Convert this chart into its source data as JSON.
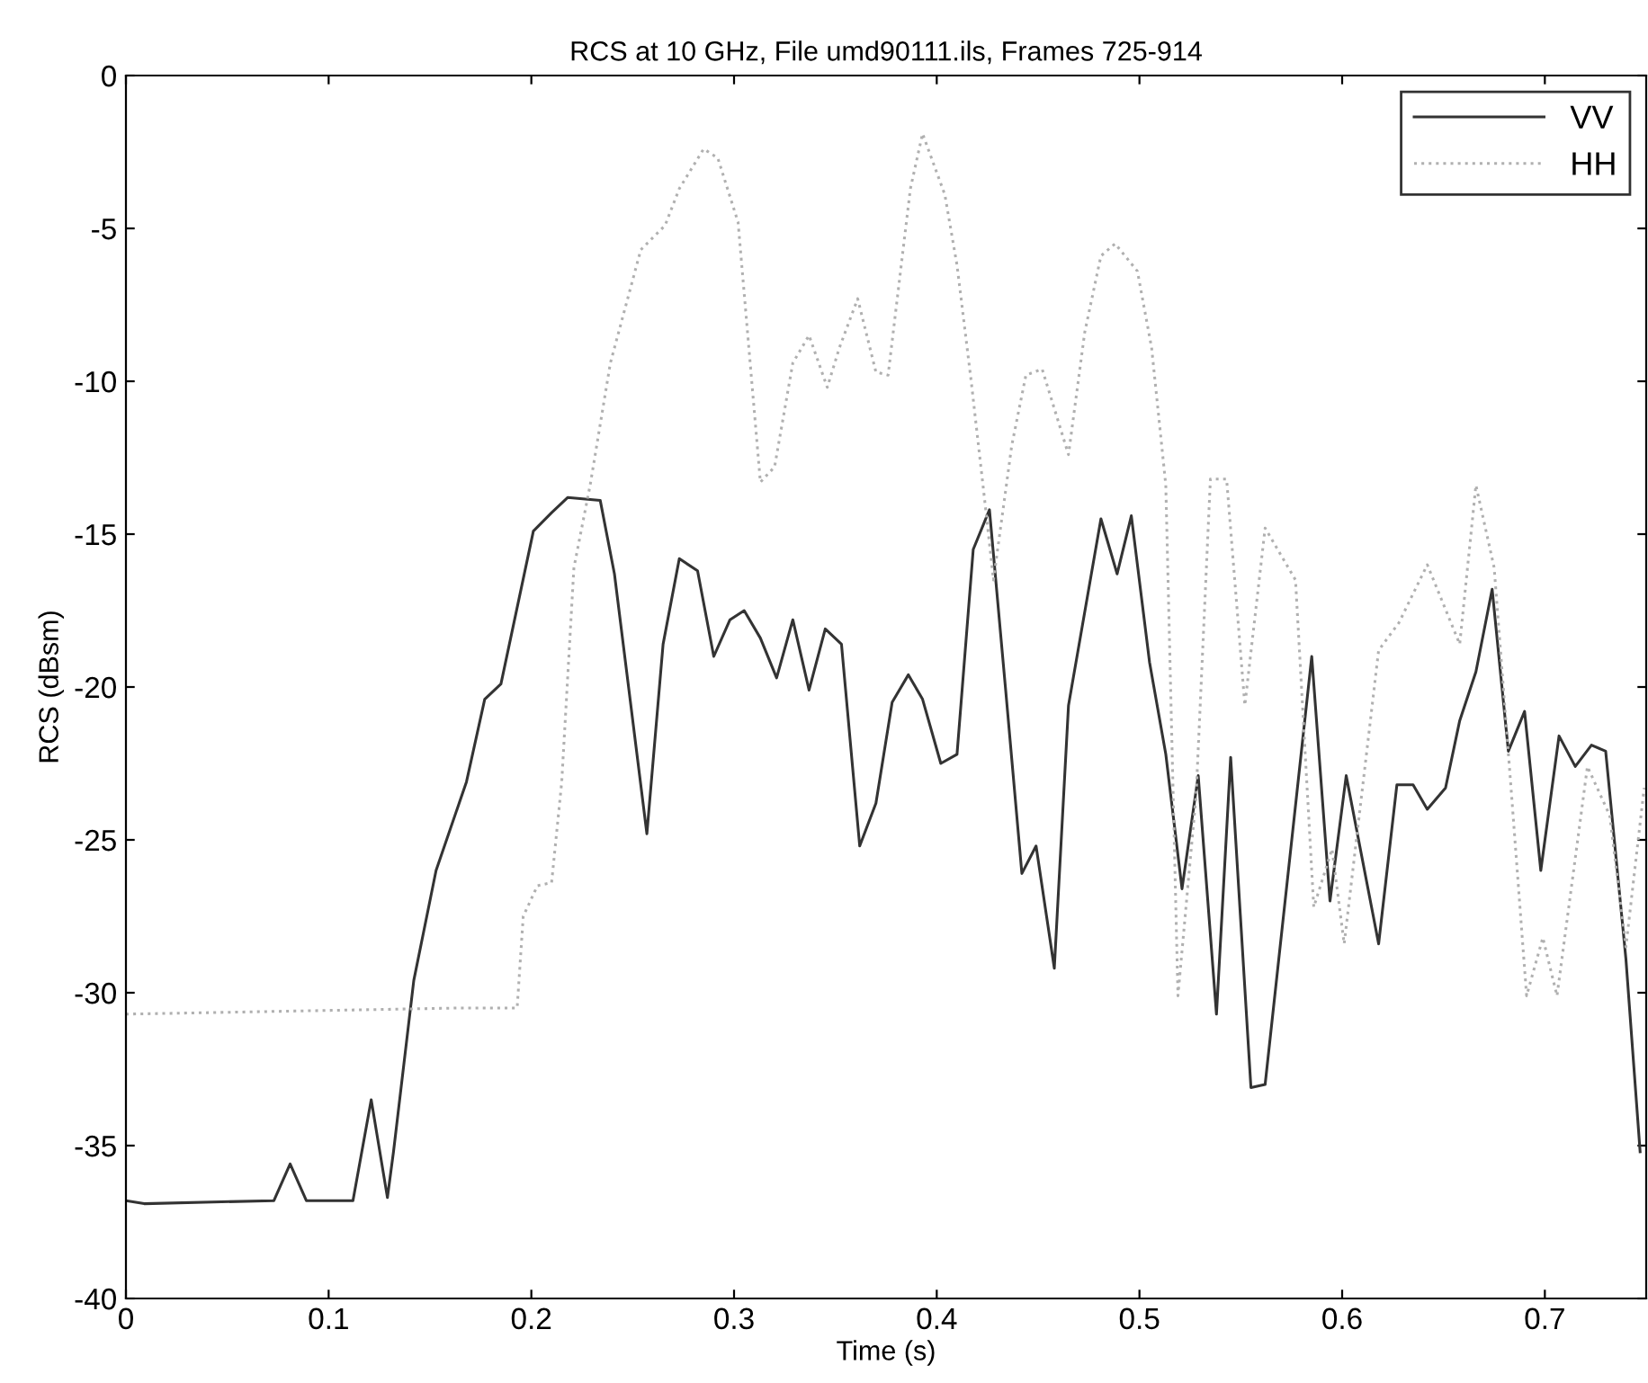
{
  "chart_data": {
    "type": "line",
    "title": "RCS at 10 GHz, File umd90111.ils, Frames 725-914",
    "xlabel": "Time (s)",
    "ylabel": "RCS (dBsm)",
    "xlim": [
      0,
      0.75
    ],
    "ylim": [
      -40,
      0
    ],
    "xticks": [
      0,
      0.1,
      0.2,
      0.3,
      0.4,
      0.5,
      0.6,
      0.7
    ],
    "yticks": [
      -40,
      -35,
      -30,
      -25,
      -20,
      -15,
      -10,
      -5,
      0
    ],
    "grid": false,
    "legend": "top right",
    "marker": "none",
    "series": [
      {
        "name": "VV",
        "color": "#333333",
        "line_style": "solid",
        "x": [
          0.0,
          0.009,
          0.073,
          0.081,
          0.089,
          0.112,
          0.121,
          0.129,
          0.132,
          0.142,
          0.153,
          0.168,
          0.177,
          0.185,
          0.201,
          0.21,
          0.218,
          0.234,
          0.241,
          0.257,
          0.265,
          0.273,
          0.282,
          0.29,
          0.298,
          0.305,
          0.313,
          0.321,
          0.329,
          0.337,
          0.345,
          0.353,
          0.362,
          0.37,
          0.378,
          0.386,
          0.393,
          0.402,
          0.41,
          0.418,
          0.426,
          0.434,
          0.442,
          0.449,
          0.458,
          0.465,
          0.481,
          0.489,
          0.496,
          0.505,
          0.513,
          0.521,
          0.529,
          0.538,
          0.545,
          0.555,
          0.562,
          0.585,
          0.594,
          0.602,
          0.618,
          0.627,
          0.635,
          0.642,
          0.651,
          0.658,
          0.666,
          0.674,
          0.682,
          0.69,
          0.698,
          0.707,
          0.715,
          0.723,
          0.73,
          0.74,
          0.747
        ],
        "values": [
          -36.8,
          -36.9,
          -36.8,
          -35.6,
          -36.8,
          -36.8,
          -33.5,
          -36.7,
          -35.2,
          -29.6,
          -26.0,
          -23.1,
          -20.4,
          -19.9,
          -14.9,
          -14.3,
          -13.8,
          -13.9,
          -16.3,
          -24.8,
          -18.6,
          -15.8,
          -16.2,
          -19.0,
          -17.8,
          -17.5,
          -18.4,
          -19.7,
          -17.8,
          -20.1,
          -18.1,
          -18.6,
          -25.2,
          -23.8,
          -20.5,
          -19.6,
          -20.4,
          -22.5,
          -22.2,
          -15.5,
          -14.2,
          -20.1,
          -26.1,
          -25.2,
          -29.2,
          -20.6,
          -14.5,
          -16.3,
          -14.4,
          -19.2,
          -22.2,
          -26.6,
          -22.9,
          -30.7,
          -22.3,
          -33.1,
          -33.0,
          -19.0,
          -27.0,
          -22.9,
          -28.4,
          -23.2,
          -23.2,
          -24.0,
          -23.3,
          -21.1,
          -19.5,
          -16.8,
          -22.1,
          -20.8,
          -26.0,
          -21.6,
          -22.6,
          -21.9,
          -22.1,
          -28.9,
          -35.2
        ]
      },
      {
        "name": "HH",
        "color": "#b0b0b0",
        "line_style": "dotted",
        "x": [
          0.0,
          0.164,
          0.193,
          0.196,
          0.203,
          0.21,
          0.215,
          0.221,
          0.229,
          0.239,
          0.254,
          0.266,
          0.273,
          0.285,
          0.292,
          0.302,
          0.313,
          0.32,
          0.329,
          0.337,
          0.346,
          0.352,
          0.361,
          0.37,
          0.376,
          0.387,
          0.393,
          0.404,
          0.41,
          0.417,
          0.424,
          0.428,
          0.437,
          0.444,
          0.452,
          0.465,
          0.473,
          0.481,
          0.488,
          0.499,
          0.506,
          0.513,
          0.519,
          0.528,
          0.535,
          0.543,
          0.552,
          0.562,
          0.577,
          0.586,
          0.595,
          0.601,
          0.618,
          0.628,
          0.642,
          0.658,
          0.666,
          0.675,
          0.684,
          0.691,
          0.699,
          0.706,
          0.721,
          0.732,
          0.74,
          0.749
        ],
        "values": [
          -30.7,
          -30.5,
          -30.5,
          -27.5,
          -26.5,
          -26.4,
          -23.1,
          -16.1,
          -13.4,
          -9.4,
          -5.7,
          -4.9,
          -3.7,
          -2.4,
          -2.7,
          -4.8,
          -13.3,
          -12.8,
          -9.4,
          -8.5,
          -10.2,
          -8.9,
          -7.3,
          -9.7,
          -9.8,
          -3.7,
          -1.9,
          -3.9,
          -6.2,
          -10.0,
          -14.1,
          -16.5,
          -12.1,
          -9.8,
          -9.6,
          -12.4,
          -8.4,
          -5.9,
          -5.5,
          -6.4,
          -8.9,
          -13.4,
          -30.1,
          -23.5,
          -13.2,
          -13.2,
          -20.6,
          -14.8,
          -16.5,
          -27.2,
          -25.3,
          -28.4,
          -18.8,
          -17.9,
          -16.0,
          -18.6,
          -13.4,
          -16.1,
          -23.9,
          -30.1,
          -28.2,
          -30.1,
          -22.6,
          -24.2,
          -28.5,
          -23.3
        ]
      }
    ]
  }
}
